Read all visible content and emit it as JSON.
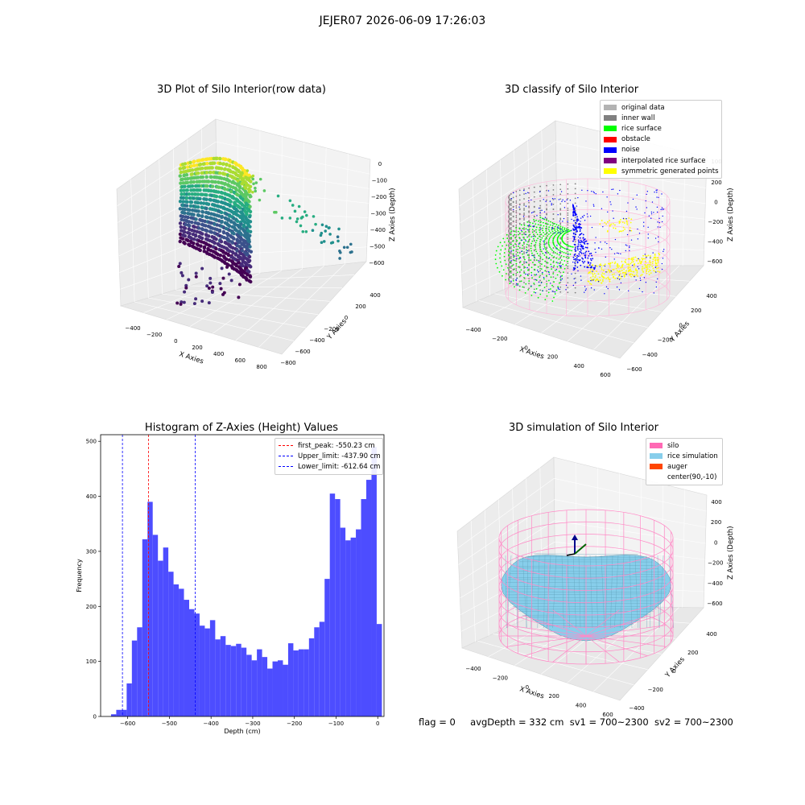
{
  "figure": {
    "suptitle": "JEJER07 2026-06-09 17:26:03"
  },
  "status": {
    "flag": "flag = 0",
    "avg_depth": "avgDepth = 332 cm",
    "sv1": "sv1 = 700~2300",
    "sv2": "sv2 = 700~2300"
  },
  "colors": {
    "histogram": "#4d4dff",
    "peak_line": "#ff0000",
    "limit_line": "#0000ff",
    "pane_floor": "#ebebeb",
    "pane_wall": "#f2f2f2"
  },
  "chart_data": [
    {
      "type": "scatter",
      "panel": "3d-raw",
      "title": "3D Plot of Silo Interior(row data)",
      "xlabel": "X Axies",
      "ylabel": "Y Axies",
      "zlabel": "Z Axies (Depth)",
      "x_ticks": [
        "−400",
        "−200",
        "0",
        "200",
        "400",
        "600",
        "800"
      ],
      "y_ticks": [
        "−800",
        "−600",
        "−400",
        "−200",
        "0",
        "200",
        "400"
      ],
      "z_ticks": [
        "0",
        "−100",
        "−200",
        "−300",
        "−400",
        "−500",
        "−600"
      ],
      "colormap": "viridis"
    },
    {
      "type": "scatter",
      "panel": "3d-classify",
      "title": "3D classify of Silo Interior",
      "xlabel": "X Axies",
      "ylabel": "Y Axies",
      "zlabel": "Z Axies (Depth)",
      "x_ticks": [
        "−400",
        "−200",
        "0",
        "200",
        "400",
        "600"
      ],
      "y_ticks": [
        "−600",
        "−400",
        "−200",
        "0",
        "200",
        "400"
      ],
      "z_ticks": [
        "200",
        "0",
        "−200",
        "−400",
        "−600"
      ],
      "z_ticks_upper": [
        "100"
      ],
      "legend": [
        {
          "label": "original data",
          "color": "#b3b3b3"
        },
        {
          "label": "inner wall",
          "color": "#808080"
        },
        {
          "label": "rice surface",
          "color": "#00ff00"
        },
        {
          "label": "obstacle",
          "color": "#ff0000"
        },
        {
          "label": "noise",
          "color": "#0000ff"
        },
        {
          "label": "interpolated rice surface",
          "color": "#800080"
        },
        {
          "label": "symmetric generated points",
          "color": "#ffff00"
        }
      ]
    },
    {
      "type": "bar",
      "panel": "histogram",
      "title": "Histogram of Z-Axies (Height) Values",
      "xlabel": "Depth (cm)",
      "ylabel": "Frequency",
      "xlim": [
        -665,
        15
      ],
      "ylim": [
        0,
        512
      ],
      "x_ticks": [
        -600,
        -500,
        -400,
        -300,
        -200,
        -100,
        0
      ],
      "y_ticks": [
        0,
        100,
        200,
        300,
        400,
        500
      ],
      "bin_start": -640,
      "bin_width": 12.5,
      "values": [
        4,
        12,
        12,
        60,
        138,
        162,
        322,
        390,
        330,
        283,
        307,
        263,
        240,
        232,
        212,
        195,
        187,
        165,
        160,
        175,
        140,
        146,
        130,
        128,
        132,
        125,
        112,
        102,
        122,
        108,
        87,
        100,
        102,
        94,
        133,
        120,
        122,
        122,
        142,
        162,
        172,
        250,
        405,
        395,
        343,
        320,
        325,
        340,
        395,
        430,
        490,
        168
      ],
      "vlines": [
        {
          "label": "first_peak: -550.23 cm",
          "value": -550.23,
          "color": "#ff0000"
        },
        {
          "label": "Upper_limit: -437.90 cm",
          "value": -437.9,
          "color": "#0000ff"
        },
        {
          "label": "Lower_limit: -612.64 cm",
          "value": -612.64,
          "color": "#0000ff"
        }
      ]
    },
    {
      "type": "surface",
      "panel": "3d-simulation",
      "title": "3D simulation of Silo Interior",
      "xlabel": "X Axies",
      "ylabel": "Y Axies",
      "zlabel": "Z Axies (Depth)",
      "x_ticks": [
        "−400",
        "−200",
        "0",
        "200",
        "400",
        "600"
      ],
      "y_ticks": [
        "−400",
        "−200",
        "0",
        "200",
        "400"
      ],
      "z_ticks": [
        "400",
        "200",
        "0",
        "−200",
        "−400",
        "−600"
      ],
      "legend": [
        {
          "label": "silo",
          "color": "#ff69b4"
        },
        {
          "label": "rice simulation",
          "color": "#87ceeb"
        },
        {
          "label": "auger",
          "color": "#ff4500"
        },
        {
          "label": "center(90,-10)",
          "color": ""
        }
      ]
    }
  ]
}
